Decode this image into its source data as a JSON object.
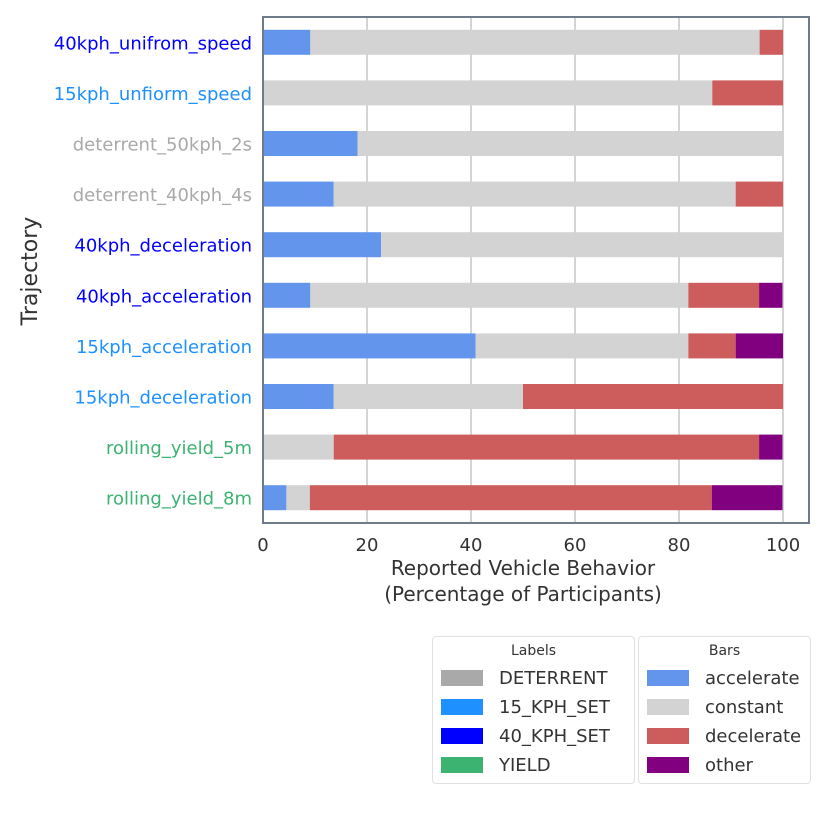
{
  "chart_data": {
    "type": "bar",
    "orientation": "horizontal",
    "stacked": true,
    "title": "",
    "xlabel": "Reported Vehicle Behavior\n(Percentage of Participants)",
    "xlabel_lines": [
      "Reported Vehicle Behavior",
      "(Percentage of Participants)"
    ],
    "ylabel": "Trajectory",
    "xlim": [
      0,
      105
    ],
    "xticks": [
      0,
      20,
      40,
      60,
      80,
      100
    ],
    "grid": "vertical",
    "categories": [
      "40kph_unifrom_speed",
      "15kph_unfiorm_speed",
      "deterrent_50kph_2s",
      "deterrent_40kph_4s",
      "40kph_deceleration",
      "40kph_acceleration",
      "15kph_acceleration",
      "15kph_deceleration",
      "rolling_yield_5m",
      "rolling_yield_8m"
    ],
    "category_groups": [
      "40_KPH_SET",
      "15_KPH_SET",
      "DETERRENT",
      "DETERRENT",
      "40_KPH_SET",
      "40_KPH_SET",
      "15_KPH_SET",
      "15_KPH_SET",
      "YIELD",
      "YIELD"
    ],
    "series": [
      {
        "name": "accelerate",
        "color": "#6495ed",
        "values": [
          9.1,
          0,
          18.2,
          13.6,
          22.7,
          9.1,
          40.9,
          13.6,
          0,
          4.5
        ]
      },
      {
        "name": "constant",
        "color": "#d3d3d3",
        "values": [
          86.4,
          86.4,
          81.8,
          77.3,
          77.3,
          72.7,
          40.9,
          36.4,
          13.6,
          4.5
        ]
      },
      {
        "name": "decelerate",
        "color": "#cd5c5c",
        "values": [
          4.5,
          13.6,
          0,
          9.1,
          0,
          13.6,
          9.1,
          50.0,
          81.8,
          77.3
        ]
      },
      {
        "name": "other",
        "color": "#800080",
        "values": [
          0,
          0,
          0,
          0,
          0,
          4.5,
          9.1,
          0,
          4.5,
          13.6
        ]
      }
    ],
    "label_groups": [
      {
        "name": "DETERRENT",
        "color": "#a9a9a9"
      },
      {
        "name": "15_KPH_SET",
        "color": "#1e90ff"
      },
      {
        "name": "40_KPH_SET",
        "color": "#0000ff"
      },
      {
        "name": "YIELD",
        "color": "#3cb371"
      }
    ],
    "legends": [
      {
        "title": "Labels",
        "entries": [
          "DETERRENT",
          "15_KPH_SET",
          "40_KPH_SET",
          "YIELD"
        ]
      },
      {
        "title": "Bars",
        "entries": [
          "accelerate",
          "constant",
          "decelerate",
          "other"
        ]
      }
    ]
  }
}
